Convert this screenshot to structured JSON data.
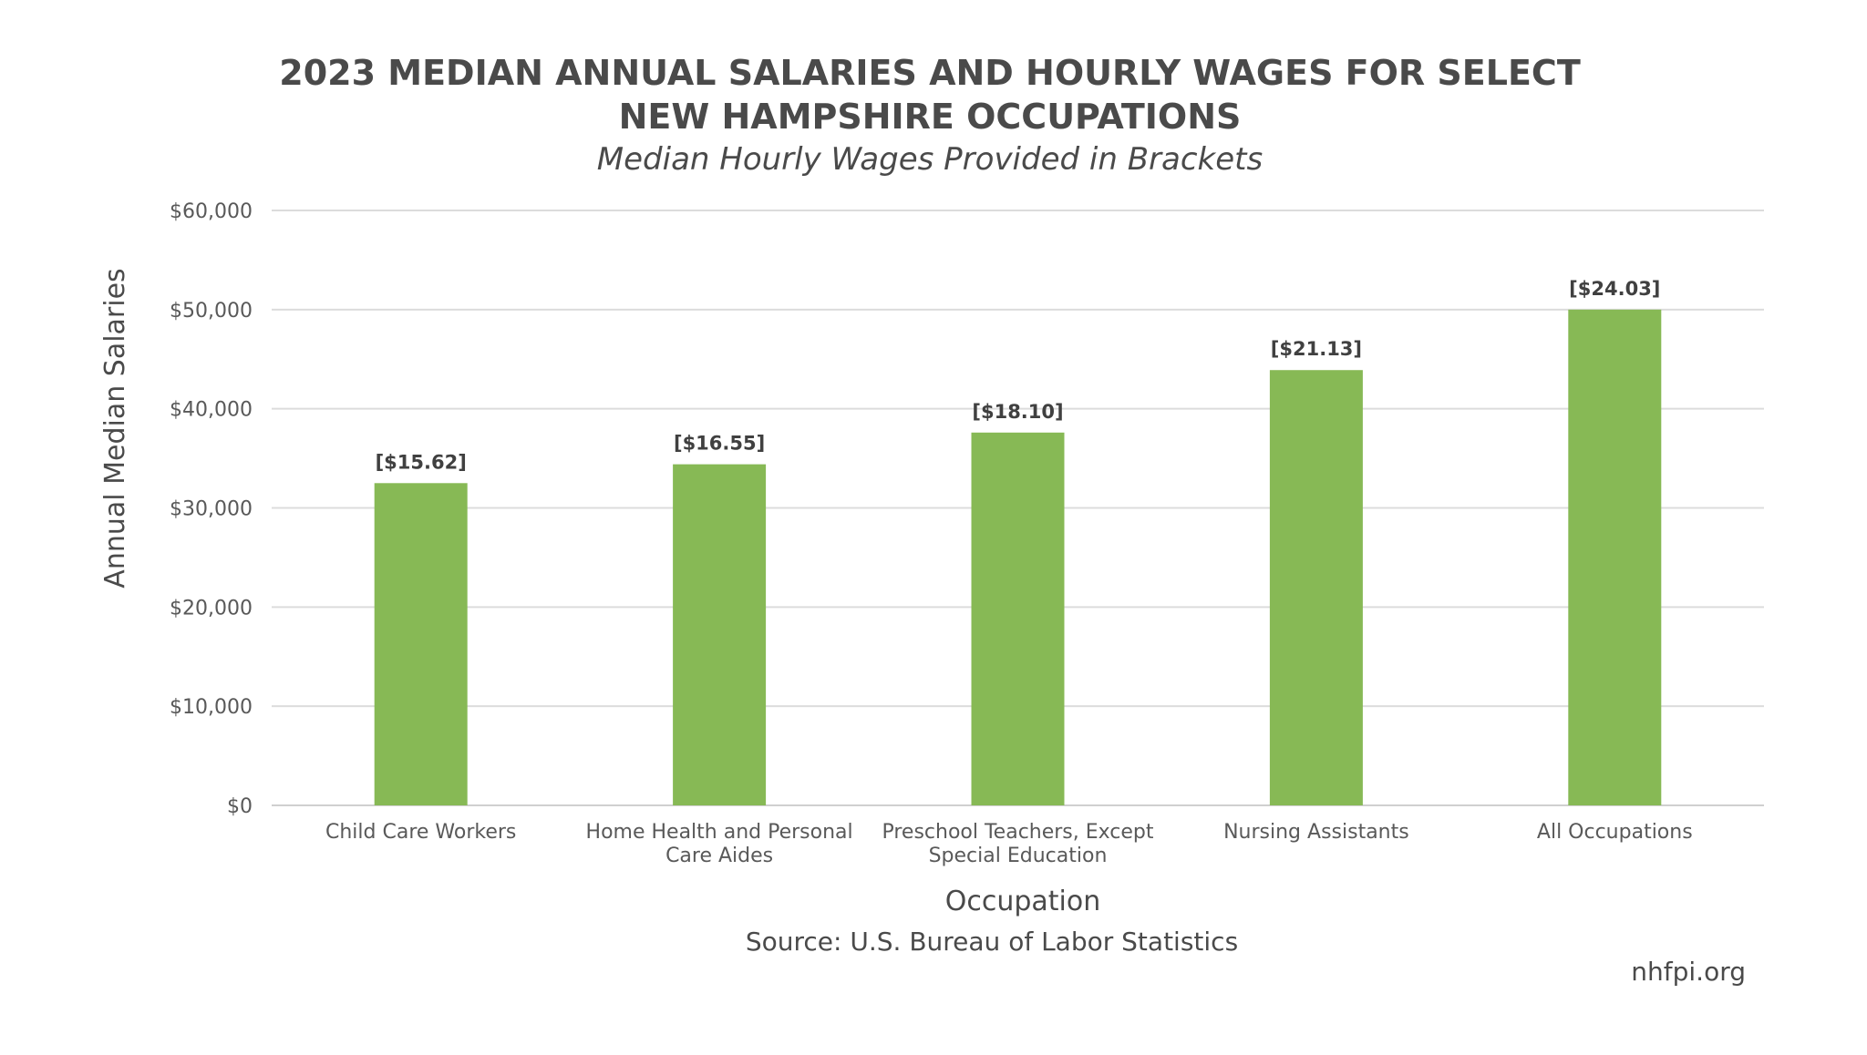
{
  "chart_data": {
    "type": "bar",
    "title_lines": [
      "2023 MEDIAN ANNUAL SALARIES AND HOURLY WAGES FOR SELECT",
      "NEW HAMPSHIRE OCCUPATIONS"
    ],
    "subtitle": "Median Hourly Wages Provided in Brackets",
    "categories": [
      [
        "Child Care Workers"
      ],
      [
        "Home Health and Personal",
        "Care Aides"
      ],
      [
        "Preschool Teachers, Except",
        "Special Education"
      ],
      [
        "Nursing Assistants"
      ],
      [
        "All Occupations"
      ]
    ],
    "values": [
      32500,
      34400,
      37600,
      43900,
      50000
    ],
    "data_labels": [
      "[$15.62]",
      "[$16.55]",
      "[$18.10]",
      "[$21.13]",
      "[$24.03]"
    ],
    "yticks": [
      0,
      10000,
      20000,
      30000,
      40000,
      50000,
      60000
    ],
    "ytick_labels": [
      "$0",
      "$10,000",
      "$20,000",
      "$30,000",
      "$40,000",
      "$50,000",
      "$60,000"
    ],
    "ylim": [
      0,
      60000
    ],
    "xlabel": "Occupation",
    "ylabel": "Annual Median Salaries",
    "grid": true,
    "bar_color": "#87b955",
    "grid_color": "#dcdcdc"
  },
  "footer": {
    "source": "Source: U.S. Bureau of Labor Statistics",
    "credit": "nhfpi.org"
  }
}
